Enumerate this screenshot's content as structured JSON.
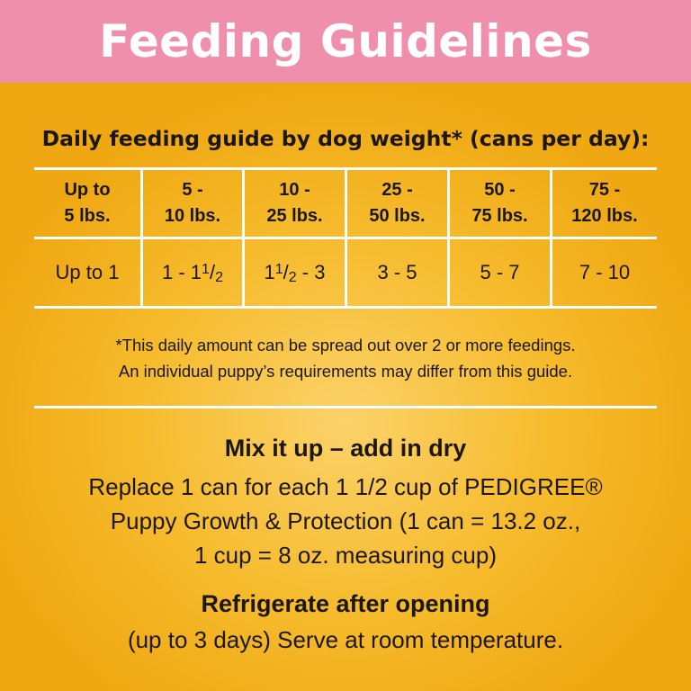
{
  "banner": {
    "title": "Feeding Guidelines"
  },
  "guide": {
    "subtitle": "Daily feeding guide by dog weight* (cans per day):",
    "headers": [
      [
        "Up to",
        "5 lbs."
      ],
      [
        "5 -",
        "10 lbs."
      ],
      [
        "10 -",
        "25 lbs."
      ],
      [
        "25 -",
        "50 lbs."
      ],
      [
        "50 -",
        "75 lbs."
      ],
      [
        "75 -",
        "120 lbs."
      ]
    ],
    "values": {
      "c0": "Up to 1",
      "c1_pre": "1 - 1",
      "c1_num": "1",
      "c1_slash": "/",
      "c1_den": "2",
      "c2_pre": "1",
      "c2_num": "1",
      "c2_slash": "/",
      "c2_den": "2",
      "c2_post": " - 3",
      "c3": "3 - 5",
      "c4": "5 - 7",
      "c5": "7 - 10"
    },
    "footnote_line1": "*This daily amount can be spread out over 2 or more feedings.",
    "footnote_line2": "An individual puppy’s requirements may differ from this guide."
  },
  "mix": {
    "title": "Mix it up – add in dry",
    "line1": "Replace 1 can for each 1 1/2 cup of PEDIGREE®",
    "line2": "Puppy Growth & Protection (1 can = 13.2 oz.,",
    "line3": "1 cup = 8 oz. measuring cup)"
  },
  "storage": {
    "title": "Refrigerate after opening",
    "line1": "(up to 3 days) Serve at room temperature."
  },
  "colors": {
    "banner_pink": "#ef8fab",
    "background_yellow": "#f6bb2c",
    "rule_white": "#ffffff"
  }
}
